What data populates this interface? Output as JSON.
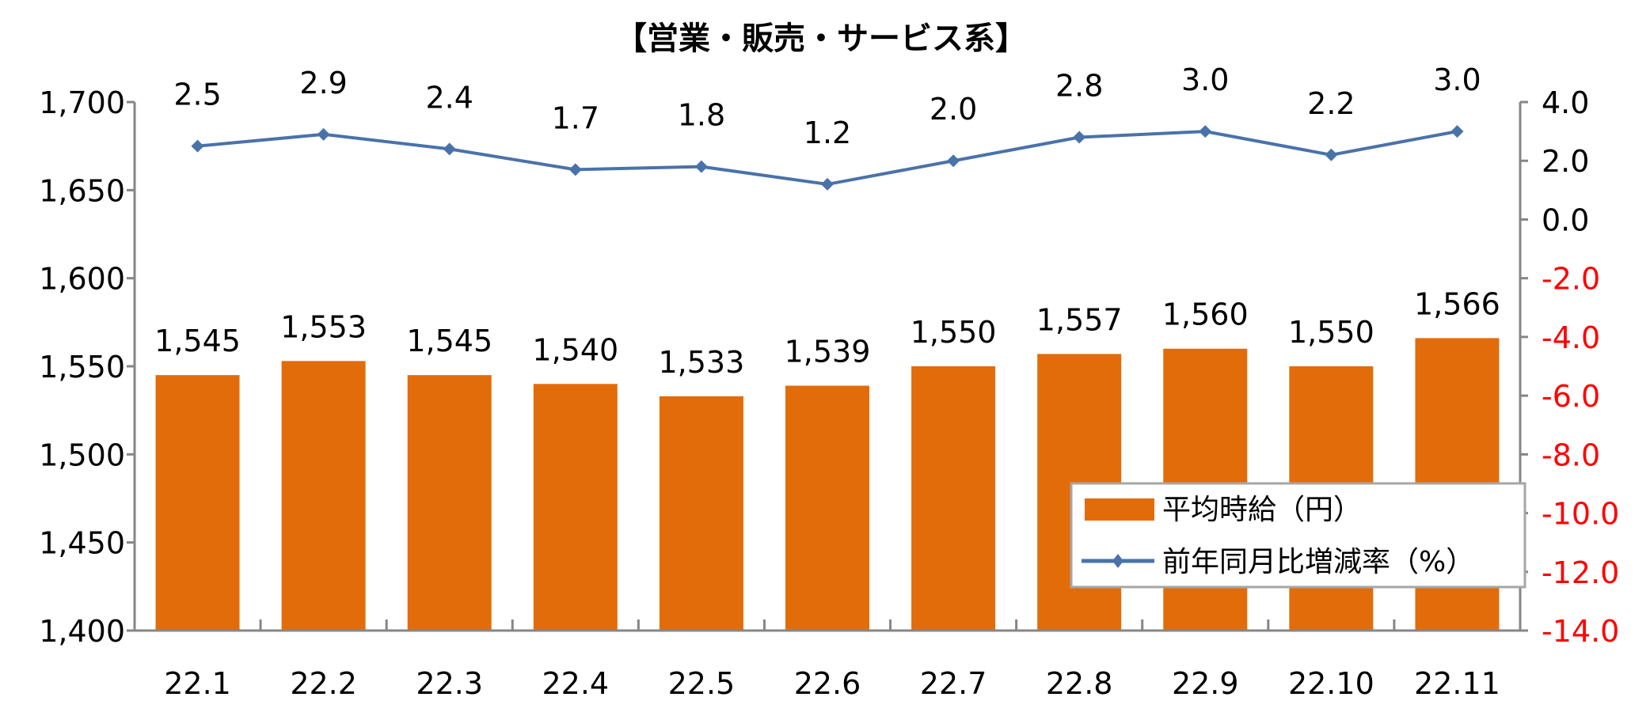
{
  "chart_data": {
    "type": "bar+line",
    "title": "【営業・販売・サービス系】",
    "categories": [
      "22.1",
      "22.2",
      "22.3",
      "22.4",
      "22.5",
      "22.6",
      "22.7",
      "22.8",
      "22.9",
      "22.10",
      "22.11"
    ],
    "series": [
      {
        "name": "平均時給（円）",
        "type": "bar",
        "axis": "left",
        "color": "#E36C0A",
        "values": [
          1545,
          1553,
          1545,
          1540,
          1533,
          1539,
          1550,
          1557,
          1560,
          1550,
          1566
        ],
        "labels": [
          "1,545",
          "1,553",
          "1,545",
          "1,540",
          "1,533",
          "1,539",
          "1,550",
          "1,557",
          "1,560",
          "1,550",
          "1,566"
        ]
      },
      {
        "name": "前年同月比増減率（%）",
        "type": "line",
        "axis": "right",
        "color": "#4A72AA",
        "values": [
          2.5,
          2.9,
          2.4,
          1.7,
          1.8,
          1.2,
          2.0,
          2.8,
          3.0,
          2.2,
          3.0
        ],
        "labels": [
          "2.5",
          "2.9",
          "2.4",
          "1.7",
          "1.8",
          "1.2",
          "2.0",
          "2.8",
          "3.0",
          "2.2",
          "3.0"
        ]
      }
    ],
    "y_left": {
      "range": [
        1400,
        1700
      ],
      "ticks": [
        "1,400",
        "1,450",
        "1,500",
        "1,550",
        "1,600",
        "1,650",
        "1,700"
      ]
    },
    "y_right": {
      "range": [
        -14,
        4
      ],
      "ticks": [
        "-14.0",
        "-12.0",
        "-10.0",
        "-8.0",
        "-6.0",
        "-4.0",
        "-2.0",
        "0.0",
        "2.0",
        "4.0"
      ],
      "negative_color": "#FF0000"
    },
    "grid": false,
    "legend": "bottom-right"
  }
}
